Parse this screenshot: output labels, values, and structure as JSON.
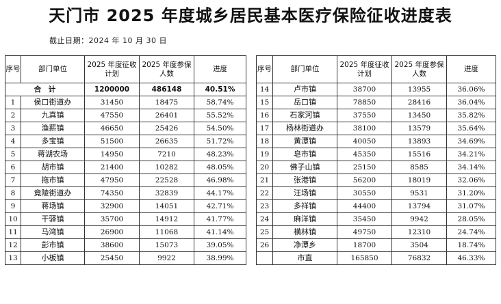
{
  "title": "天门市 2025 年度城乡居民基本医疗保险征收进度表",
  "deadline": "截止日期：2024 年 10 月 30 日",
  "headers": {
    "seq": "序号",
    "dept": "部门单位",
    "plan": "2025 年度征收计划",
    "insured": "2025 年度参保人数",
    "progress": "进度"
  },
  "total": {
    "label": "合　计",
    "plan": "1200000",
    "insured": "486148",
    "progress": "40.51%"
  },
  "left_rows": [
    {
      "seq": "1",
      "name": "侯口街道办",
      "plan": "31450",
      "insured": "18475",
      "progress": "58.74%"
    },
    {
      "seq": "2",
      "name": "九真镇",
      "plan": "47550",
      "insured": "26401",
      "progress": "55.52%"
    },
    {
      "seq": "3",
      "name": "渔薪镇",
      "plan": "46650",
      "insured": "25426",
      "progress": "54.50%"
    },
    {
      "seq": "4",
      "name": "多宝镇",
      "plan": "51500",
      "insured": "26635",
      "progress": "51.72%"
    },
    {
      "seq": "5",
      "name": "蒋湖农场",
      "plan": "14950",
      "insured": "7210",
      "progress": "48.23%"
    },
    {
      "seq": "6",
      "name": "胡市镇",
      "plan": "21400",
      "insured": "10282",
      "progress": "48.05%"
    },
    {
      "seq": "7",
      "name": "拖市镇",
      "plan": "47950",
      "insured": "22528",
      "progress": "46.98%"
    },
    {
      "seq": "8",
      "name": "竟陵街道办",
      "plan": "74350",
      "insured": "32839",
      "progress": "44.17%"
    },
    {
      "seq": "9",
      "name": "蒋场镇",
      "plan": "32900",
      "insured": "14051",
      "progress": "42.71%"
    },
    {
      "seq": "10",
      "name": "干驿镇",
      "plan": "35700",
      "insured": "14912",
      "progress": "41.77%"
    },
    {
      "seq": "11",
      "name": "马湾镇",
      "plan": "26900",
      "insured": "11068",
      "progress": "41.14%"
    },
    {
      "seq": "12",
      "name": "彭市镇",
      "plan": "38600",
      "insured": "15073",
      "progress": "39.05%"
    },
    {
      "seq": "13",
      "name": "小板镇",
      "plan": "25450",
      "insured": "9922",
      "progress": "38.99%"
    }
  ],
  "right_rows": [
    {
      "seq": "14",
      "name": "卢市镇",
      "plan": "38700",
      "insured": "13955",
      "progress": "36.06%"
    },
    {
      "seq": "15",
      "name": "岳口镇",
      "plan": "78850",
      "insured": "28416",
      "progress": "36.04%"
    },
    {
      "seq": "16",
      "name": "石家河镇",
      "plan": "37550",
      "insured": "13450",
      "progress": "35.82%"
    },
    {
      "seq": "17",
      "name": "杨林街道办",
      "plan": "38100",
      "insured": "13579",
      "progress": "35.64%"
    },
    {
      "seq": "18",
      "name": "黄潭镇",
      "plan": "40050",
      "insured": "13893",
      "progress": "34.69%"
    },
    {
      "seq": "19",
      "name": "皂市镇",
      "plan": "45350",
      "insured": "15516",
      "progress": "34.21%"
    },
    {
      "seq": "20",
      "name": "佛子山镇",
      "plan": "25150",
      "insured": "8585",
      "progress": "34.14%"
    },
    {
      "seq": "21",
      "name": "张港镇",
      "plan": "56200",
      "insured": "18019",
      "progress": "32.06%"
    },
    {
      "seq": "22",
      "name": "汪场镇",
      "plan": "30550",
      "insured": "9531",
      "progress": "31.20%"
    },
    {
      "seq": "23",
      "name": "多祥镇",
      "plan": "44400",
      "insured": "13794",
      "progress": "31.07%"
    },
    {
      "seq": "24",
      "name": "麻洋镇",
      "plan": "35450",
      "insured": "9942",
      "progress": "28.05%"
    },
    {
      "seq": "25",
      "name": "横林镇",
      "plan": "49750",
      "insured": "12310",
      "progress": "24.74%"
    },
    {
      "seq": "26",
      "name": "净潭乡",
      "plan": "18700",
      "insured": "3504",
      "progress": "18.74%"
    },
    {
      "seq": "",
      "name": "市直",
      "plan": "165850",
      "insured": "76832",
      "progress": "46.33%"
    }
  ]
}
